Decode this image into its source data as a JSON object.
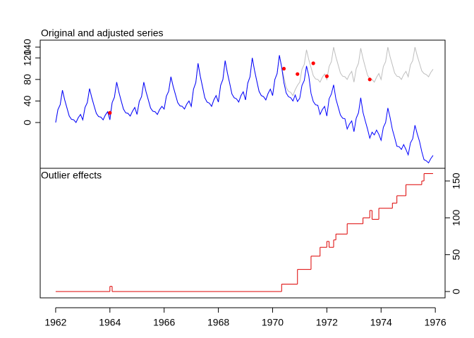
{
  "chart_data": [
    {
      "type": "line",
      "title": "Original and adjusted series",
      "x": [
        1962,
        1962.083,
        1962.167,
        1962.25,
        1962.333,
        1962.417,
        1962.5,
        1962.583,
        1962.667,
        1962.75,
        1962.833,
        1962.917,
        1963,
        1963.083,
        1963.167,
        1963.25,
        1963.333,
        1963.417,
        1963.5,
        1963.583,
        1963.667,
        1963.75,
        1963.833,
        1963.917,
        1964,
        1964.083,
        1964.167,
        1964.25,
        1964.333,
        1964.417,
        1964.5,
        1964.583,
        1964.667,
        1964.75,
        1964.833,
        1964.917,
        1965,
        1965.083,
        1965.167,
        1965.25,
        1965.333,
        1965.417,
        1965.5,
        1965.583,
        1965.667,
        1965.75,
        1965.833,
        1965.917,
        1966,
        1966.083,
        1966.167,
        1966.25,
        1966.333,
        1966.417,
        1966.5,
        1966.583,
        1966.667,
        1966.75,
        1966.833,
        1966.917,
        1967,
        1967.083,
        1967.167,
        1967.25,
        1967.333,
        1967.417,
        1967.5,
        1967.583,
        1967.667,
        1967.75,
        1967.833,
        1967.917,
        1968,
        1968.083,
        1968.167,
        1968.25,
        1968.333,
        1968.417,
        1968.5,
        1968.583,
        1968.667,
        1968.75,
        1968.833,
        1968.917,
        1969,
        1969.083,
        1969.167,
        1969.25,
        1969.333,
        1969.417,
        1969.5,
        1969.583,
        1969.667,
        1969.75,
        1969.833,
        1969.917,
        1970,
        1970.083,
        1970.167,
        1970.25,
        1970.333,
        1970.417,
        1970.5,
        1970.583,
        1970.667,
        1970.75,
        1970.833,
        1970.917,
        1971,
        1971.083,
        1971.167,
        1971.25,
        1971.333,
        1971.417,
        1971.5,
        1971.583,
        1971.667,
        1971.75,
        1971.833,
        1971.917,
        1972,
        1972.083,
        1972.167,
        1972.25,
        1972.333,
        1972.417,
        1972.5,
        1972.583,
        1972.667,
        1972.75,
        1972.833,
        1972.917,
        1973,
        1973.083,
        1973.167,
        1973.25,
        1973.333,
        1973.417,
        1973.5,
        1973.583,
        1973.667,
        1973.75,
        1973.833,
        1973.917,
        1974,
        1974.083,
        1974.167,
        1974.25,
        1974.333,
        1974.417,
        1974.5,
        1974.583,
        1974.667,
        1974.75,
        1974.833,
        1974.917,
        1975,
        1975.083,
        1975.167,
        1975.25,
        1975.333,
        1975.417,
        1975.5,
        1975.583,
        1975.667,
        1975.75,
        1975.833,
        1975.917
      ],
      "series": [
        {
          "color": "#bebebe",
          "values": [
            0,
            24,
            33,
            60,
            42,
            27,
            12,
            6,
            5,
            0,
            9,
            15,
            5,
            28,
            37,
            63,
            46,
            31,
            17,
            11,
            10,
            5,
            14,
            20,
            12,
            37,
            47,
            75,
            56,
            40,
            25,
            18,
            17,
            12,
            21,
            28,
            15,
            39,
            48,
            75,
            57,
            42,
            27,
            21,
            20,
            15,
            24,
            30,
            25,
            49,
            58,
            85,
            67,
            52,
            37,
            31,
            30,
            25,
            34,
            40,
            30,
            62,
            74,
            110,
            86,
            66,
            46,
            38,
            36,
            30,
            42,
            50,
            38,
            69,
            80,
            115,
            92,
            73,
            53,
            46,
            44,
            38,
            50,
            57,
            42,
            73,
            85,
            120,
            97,
            77,
            58,
            50,
            48,
            42,
            54,
            62,
            50,
            80,
            91,
            125,
            103,
            84,
            65,
            58,
            56,
            50,
            61,
            69,
            75,
            99,
            108,
            135,
            117,
            102,
            87,
            81,
            80,
            75,
            84,
            90,
            80,
            104,
            113,
            140,
            122,
            107,
            92,
            86,
            85,
            80,
            89,
            95,
            75,
            100,
            110,
            138,
            119,
            103,
            88,
            81,
            80,
            75,
            84,
            91,
            80,
            104,
            113,
            140,
            122,
            107,
            92,
            86,
            85,
            80,
            89,
            95,
            85,
            107,
            115,
            140,
            124,
            110,
            96,
            91,
            89,
            85,
            93,
            99
          ]
        },
        {
          "color": "#0000ff",
          "values": [
            0,
            24,
            33,
            60,
            42,
            27,
            12,
            6,
            5,
            0,
            9,
            15,
            5,
            28,
            37,
            63,
            46,
            31,
            17,
            11,
            10,
            5,
            14,
            20,
            5,
            37,
            47,
            75,
            56,
            40,
            25,
            18,
            17,
            12,
            21,
            28,
            15,
            39,
            48,
            75,
            57,
            42,
            27,
            21,
            20,
            15,
            24,
            30,
            25,
            49,
            58,
            85,
            67,
            52,
            37,
            31,
            30,
            25,
            34,
            40,
            30,
            62,
            74,
            110,
            86,
            66,
            46,
            38,
            36,
            30,
            42,
            50,
            38,
            69,
            80,
            115,
            92,
            73,
            53,
            46,
            44,
            38,
            50,
            57,
            42,
            73,
            85,
            120,
            97,
            77,
            58,
            50,
            48,
            42,
            54,
            62,
            50,
            80,
            91,
            125,
            103,
            74,
            55,
            48,
            46,
            40,
            51,
            39,
            45,
            69,
            78,
            105,
            87,
            54,
            39,
            33,
            32,
            15,
            24,
            30,
            12,
            44,
            53,
            70,
            44,
            29,
            14,
            8,
            7,
            -12,
            -3,
            3,
            -17,
            8,
            18,
            46,
            19,
            3,
            -12,
            -29,
            -18,
            -23,
            -14,
            -22,
            -33,
            -9,
            0,
            27,
            9,
            -13,
            -28,
            -44,
            -45,
            -50,
            -41,
            -50,
            -60,
            -38,
            -30,
            -5,
            -21,
            -35,
            -54,
            -69,
            -71,
            -75,
            -67,
            -61
          ]
        }
      ],
      "points": {
        "color": "#ff0000",
        "x": [
          1964,
          1970.417,
          1970.917,
          1971.5,
          1972,
          1973.583
        ],
        "values": [
          18,
          100,
          90,
          110,
          86,
          80
        ]
      },
      "xlim": [
        1961.43,
        1976.36
      ],
      "ylim": [
        -85,
        153
      ],
      "yticks": [
        0,
        40,
        80,
        120,
        140
      ]
    },
    {
      "type": "step",
      "title": "Outlier effects",
      "color": "#dd0000",
      "x": [
        1962,
        1964,
        1964.083,
        1970.333,
        1970.917,
        1971.417,
        1971.75,
        1972,
        1972.083,
        1972.25,
        1972.333,
        1972.75,
        1973.333,
        1973.583,
        1973.667,
        1973.917,
        1974.417,
        1974.583,
        1974.917,
        1975.5,
        1975.583,
        1975.917
      ],
      "values": [
        0,
        7,
        0,
        10,
        30,
        48,
        60,
        68,
        60,
        70,
        78,
        92,
        100,
        110,
        98,
        113,
        120,
        130,
        145,
        150,
        160,
        160
      ],
      "xlim": [
        1961.43,
        1976.36
      ],
      "xticks": [
        1962,
        1964,
        1966,
        1968,
        1970,
        1972,
        1974,
        1976
      ],
      "ylim": [
        -8.6,
        167.2
      ],
      "yticks": [
        0,
        50,
        100,
        150
      ]
    }
  ]
}
